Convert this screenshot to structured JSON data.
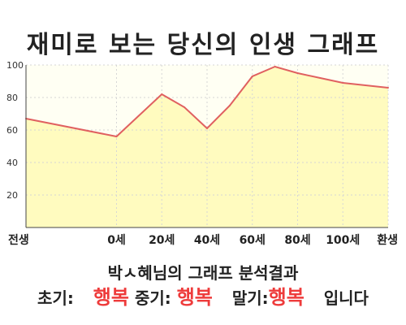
{
  "title": "재미로 보는 당신의 인생 그래프",
  "chart_data": {
    "type": "area",
    "x": [
      -40,
      0,
      20,
      30,
      40,
      50,
      60,
      70,
      80,
      90,
      100,
      120
    ],
    "y": [
      67,
      56,
      82,
      74,
      61,
      75,
      93,
      99,
      95,
      92,
      89,
      86
    ],
    "ylim": [
      0,
      100
    ],
    "yticks": [
      20,
      40,
      60,
      80,
      100
    ],
    "xlim": [
      -40,
      120
    ],
    "xticks": [
      {
        "value": -40,
        "label": "전생"
      },
      {
        "value": 0,
        "label": "0세"
      },
      {
        "value": 20,
        "label": "20세"
      },
      {
        "value": 40,
        "label": "40세"
      },
      {
        "value": 60,
        "label": "60세"
      },
      {
        "value": 80,
        "label": "80세"
      },
      {
        "value": 100,
        "label": "100세"
      },
      {
        "value": 120,
        "label": "환생"
      }
    ],
    "grid": true,
    "line_color": "#e06060",
    "fill_color": "#fffbbf"
  },
  "result": {
    "title": "박ㅅ혜님의 그래프 분석결과",
    "early_label": "초기:",
    "early_value": "행복",
    "mid_label": "중기:",
    "mid_value": "행복",
    "late_label": "말기:",
    "late_value": "행복",
    "suffix": "입니다"
  }
}
